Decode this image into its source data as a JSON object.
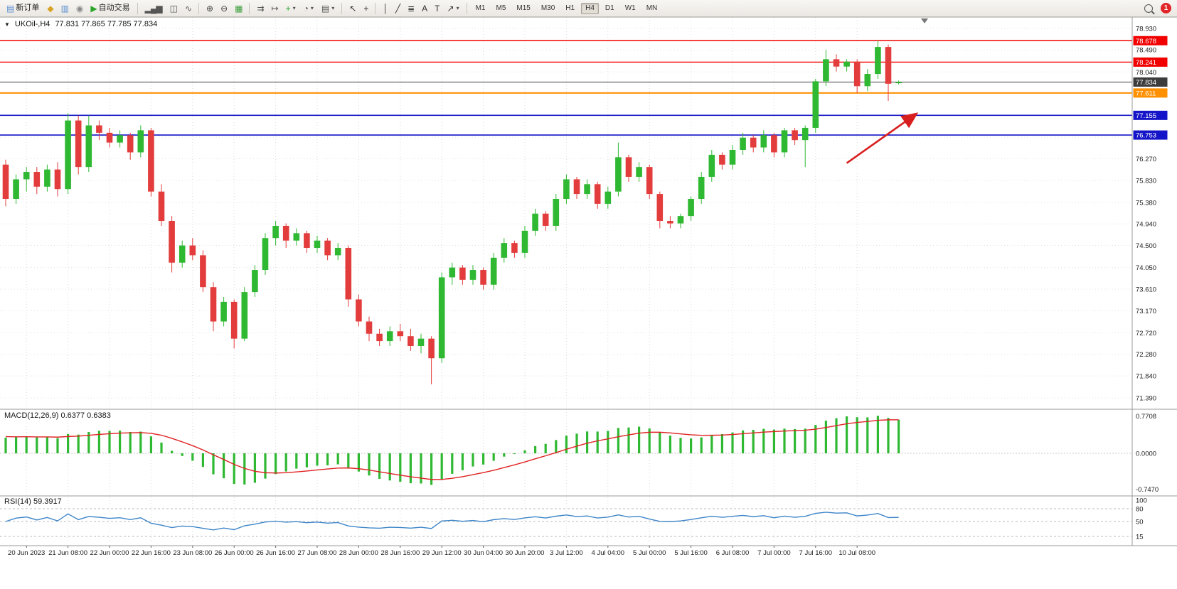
{
  "toolbar": {
    "file_group": [
      {
        "name": "new-order-button",
        "icon": "new-order-icon",
        "glyph": "▤",
        "glyph_color": "#5a8fd0",
        "label": "新订单"
      },
      {
        "name": "market-watch-button",
        "icon": "market-watch-icon",
        "glyph": "◆",
        "glyph_color": "#d8a327"
      },
      {
        "name": "data-window-button",
        "icon": "data-window-icon",
        "glyph": "▥",
        "glyph_color": "#5a8fd0"
      },
      {
        "name": "navigator-button",
        "icon": "navigator-icon",
        "glyph": "◉",
        "glyph_color": "#8a8a8a"
      },
      {
        "name": "autotrade-button",
        "icon": "autotrade-icon",
        "glyph": "▶",
        "glyph_color": "#2aa52a",
        "label": "自动交易"
      }
    ],
    "chart_type_group": [
      {
        "name": "bar-chart-button",
        "icon": "bar-chart-icon",
        "glyph": "▂▄▆",
        "glyph_color": "#555555"
      },
      {
        "name": "candlestick-chart-button",
        "icon": "candlestick-chart-icon",
        "glyph": "◫",
        "glyph_color": "#555555"
      },
      {
        "name": "line-chart-button",
        "icon": "line-chart-icon",
        "glyph": "∿",
        "glyph_color": "#555555"
      }
    ],
    "zoom_group": [
      {
        "name": "zoom-in-button",
        "icon": "zoom-in-icon",
        "glyph": "⊕",
        "glyph_color": "#444444"
      },
      {
        "name": "zoom-out-button",
        "icon": "zoom-out-icon",
        "glyph": "⊖",
        "glyph_color": "#444444"
      },
      {
        "name": "tile-windows-button",
        "icon": "tile-windows-icon",
        "glyph": "▦",
        "glyph_color": "#3c9e3c"
      }
    ],
    "scroll_group": [
      {
        "name": "auto-scroll-button",
        "icon": "auto-scroll-icon",
        "glyph": "⇉",
        "glyph_color": "#555555"
      },
      {
        "name": "chart-shift-button",
        "icon": "chart-shift-icon",
        "glyph": "↦",
        "glyph_color": "#555555"
      },
      {
        "name": "indicators-button",
        "icon": "indicators-icon",
        "glyph": "+",
        "glyph_color": "#2aa52a",
        "caret": "▾"
      },
      {
        "name": "periods-button",
        "icon": "periods-icon",
        "glyph": "◔",
        "glyph_color": "#555555",
        "caret": "▾"
      },
      {
        "name": "templates-button",
        "icon": "templates-icon",
        "glyph": "▤",
        "glyph_color": "#555555",
        "caret": "▾"
      }
    ],
    "pointer_group": [
      {
        "name": "cursor-button",
        "icon": "cursor-icon",
        "glyph": "↖",
        "glyph_color": "#333333"
      },
      {
        "name": "crosshair-button",
        "icon": "crosshair-icon",
        "glyph": "+",
        "glyph_color": "#333333"
      }
    ],
    "draw_group": [
      {
        "name": "vertical-line-button",
        "icon": "vertical-line-icon",
        "glyph": "│",
        "glyph_color": "#333333"
      },
      {
        "name": "trendline-button",
        "icon": "trendline-icon",
        "glyph": "╱",
        "glyph_color": "#333333"
      },
      {
        "name": "fibonacci-button",
        "icon": "fibonacci-icon",
        "glyph": "≣",
        "glyph_color": "#333333"
      },
      {
        "name": "text-button",
        "icon": "text-icon",
        "glyph": "A",
        "glyph_color": "#333333"
      },
      {
        "name": "text-label-button",
        "icon": "text-label-icon",
        "glyph": "T",
        "glyph_color": "#333333"
      },
      {
        "name": "arrows-button",
        "icon": "arrows-icon",
        "glyph": "↗",
        "glyph_color": "#333333",
        "caret": "▾"
      }
    ],
    "timeframes": [
      {
        "name": "timeframe-m1",
        "label": "M1"
      },
      {
        "name": "timeframe-m5",
        "label": "M5"
      },
      {
        "name": "timeframe-m15",
        "label": "M15"
      },
      {
        "name": "timeframe-m30",
        "label": "M30"
      },
      {
        "name": "timeframe-h1",
        "label": "H1"
      },
      {
        "name": "timeframe-h4",
        "label": "H4",
        "active": true
      },
      {
        "name": "timeframe-d1",
        "label": "D1"
      },
      {
        "name": "timeframe-w1",
        "label": "W1"
      },
      {
        "name": "timeframe-mn",
        "label": "MN"
      }
    ],
    "notification_count": "1"
  },
  "header": {
    "collapse_glyph": "▼",
    "symbol_period": "UKOil-,H4",
    "ohlc": "77.831 77.865 77.785 77.834"
  },
  "chart_data": {
    "type": "candlestick",
    "symbol": "UKOil",
    "period": "H4",
    "last_ohlc": {
      "open": "77.831",
      "high": "77.865",
      "low": "77.785",
      "close": "77.834"
    },
    "ylim": [
      71.16,
      79.16
    ],
    "y_ticks": [
      "78.930",
      "78.490",
      "78.040",
      "77.600",
      "77.160",
      "76.710",
      "76.270",
      "75.830",
      "75.380",
      "74.940",
      "74.500",
      "74.050",
      "73.610",
      "73.170",
      "72.720",
      "72.280",
      "71.840",
      "71.390"
    ],
    "x_labels": [
      "20 Jun 2023",
      "21 Jun 08:00",
      "22 Jun 00:00",
      "22 Jun 16:00",
      "23 Jun 08:00",
      "26 Jun 00:00",
      "26 Jun 16:00",
      "27 Jun 08:00",
      "28 Jun 00:00",
      "28 Jun 16:00",
      "29 Jun 12:00",
      "30 Jun 04:00",
      "30 Jun 20:00",
      "3 Jul 12:00",
      "4 Jul 04:00",
      "5 Jul 00:00",
      "5 Jul 16:00",
      "6 Jul 08:00",
      "7 Jul 00:00",
      "7 Jul 16:00",
      "10 Jul 08:00"
    ],
    "x_label_first_index": 2,
    "x_label_step": 4,
    "colors": {
      "up": "#2fb832",
      "down": "#e33c3c"
    },
    "levels": [
      {
        "name": "resistance-line-1",
        "price": 78.678,
        "color": "#f20000",
        "width": 1.4,
        "badge": "78.678"
      },
      {
        "name": "resistance-line-2",
        "price": 78.241,
        "color": "#f20000",
        "width": 1.4,
        "badge": "78.241"
      },
      {
        "name": "current-price-line",
        "price": 77.834,
        "color": "#3c3c3c",
        "width": 1,
        "badge": "77.834"
      },
      {
        "name": "support-line-orange",
        "price": 77.611,
        "color": "#ff9000",
        "width": 2,
        "badge": "77.611"
      },
      {
        "name": "support-line-blue-1",
        "price": 77.155,
        "color": "#1414c8",
        "width": 1.6,
        "badge": "77.155"
      },
      {
        "name": "support-line-blue-2",
        "price": 76.753,
        "color": "#1414c8",
        "width": 1.6,
        "badge": "76.753"
      }
    ],
    "annotations": {
      "trend_arrow": {
        "from_index": 81,
        "from_price": 76.18,
        "to_index": 87.6,
        "to_price": 77.17,
        "color": "#d81f1f"
      }
    },
    "candles": [
      [
        76.15,
        76.25,
        75.3,
        75.45
      ],
      [
        75.45,
        75.95,
        75.35,
        75.85
      ],
      [
        75.85,
        76.1,
        75.6,
        76.0
      ],
      [
        76.0,
        76.1,
        75.55,
        75.7
      ],
      [
        75.7,
        76.15,
        75.6,
        76.05
      ],
      [
        76.05,
        76.2,
        75.5,
        75.65
      ],
      [
        75.65,
        77.2,
        75.55,
        77.05
      ],
      [
        77.05,
        77.15,
        75.95,
        76.1
      ],
      [
        76.1,
        77.15,
        76.0,
        76.95
      ],
      [
        76.95,
        77.05,
        76.65,
        76.8
      ],
      [
        76.8,
        76.9,
        76.5,
        76.6
      ],
      [
        76.6,
        76.85,
        76.5,
        76.75
      ],
      [
        76.75,
        76.8,
        76.25,
        76.4
      ],
      [
        76.4,
        76.95,
        76.3,
        76.85
      ],
      [
        76.85,
        76.9,
        75.5,
        75.6
      ],
      [
        75.6,
        75.75,
        74.9,
        75.0
      ],
      [
        75.0,
        75.1,
        73.95,
        74.15
      ],
      [
        74.15,
        74.6,
        74.05,
        74.5
      ],
      [
        74.5,
        74.65,
        74.2,
        74.3
      ],
      [
        74.3,
        74.4,
        73.55,
        73.65
      ],
      [
        73.65,
        73.75,
        72.75,
        72.95
      ],
      [
        72.95,
        73.45,
        72.85,
        73.35
      ],
      [
        73.35,
        73.4,
        72.4,
        72.6
      ],
      [
        72.6,
        73.65,
        72.55,
        73.55
      ],
      [
        73.55,
        74.1,
        73.45,
        74.0
      ],
      [
        74.0,
        74.75,
        73.9,
        74.65
      ],
      [
        74.65,
        75.0,
        74.5,
        74.9
      ],
      [
        74.9,
        74.95,
        74.45,
        74.6
      ],
      [
        74.6,
        74.85,
        74.5,
        74.75
      ],
      [
        74.75,
        74.8,
        74.35,
        74.45
      ],
      [
        74.45,
        74.7,
        74.35,
        74.6
      ],
      [
        74.6,
        74.65,
        74.2,
        74.3
      ],
      [
        74.3,
        74.55,
        74.2,
        74.45
      ],
      [
        74.45,
        74.5,
        73.25,
        73.4
      ],
      [
        73.4,
        73.5,
        72.85,
        72.95
      ],
      [
        72.95,
        73.05,
        72.55,
        72.7
      ],
      [
        72.7,
        72.8,
        72.45,
        72.55
      ],
      [
        72.55,
        72.85,
        72.45,
        72.75
      ],
      [
        72.75,
        72.9,
        72.55,
        72.65
      ],
      [
        72.65,
        72.8,
        72.35,
        72.45
      ],
      [
        72.45,
        72.7,
        72.3,
        72.6
      ],
      [
        72.6,
        72.65,
        71.67,
        72.2
      ],
      [
        72.2,
        73.95,
        72.1,
        73.85
      ],
      [
        73.85,
        74.15,
        73.7,
        74.05
      ],
      [
        74.05,
        74.1,
        73.7,
        73.8
      ],
      [
        73.8,
        74.1,
        73.7,
        74.0
      ],
      [
        74.0,
        74.05,
        73.6,
        73.7
      ],
      [
        73.7,
        74.35,
        73.6,
        74.25
      ],
      [
        74.25,
        74.65,
        74.15,
        74.55
      ],
      [
        74.55,
        74.6,
        74.25,
        74.35
      ],
      [
        74.35,
        74.9,
        74.25,
        74.8
      ],
      [
        74.8,
        75.25,
        74.7,
        75.15
      ],
      [
        75.15,
        75.2,
        74.8,
        74.9
      ],
      [
        74.9,
        75.55,
        74.8,
        75.45
      ],
      [
        75.45,
        75.95,
        75.35,
        75.85
      ],
      [
        75.85,
        75.9,
        75.45,
        75.55
      ],
      [
        75.55,
        75.85,
        75.45,
        75.75
      ],
      [
        75.75,
        75.8,
        75.25,
        75.35
      ],
      [
        75.35,
        75.7,
        75.25,
        75.6
      ],
      [
        75.6,
        76.6,
        75.5,
        76.3
      ],
      [
        76.3,
        76.35,
        75.8,
        75.9
      ],
      [
        75.9,
        76.2,
        75.8,
        76.1
      ],
      [
        76.1,
        76.15,
        75.45,
        75.55
      ],
      [
        75.55,
        75.6,
        74.85,
        75.0
      ],
      [
        75.0,
        75.1,
        74.85,
        74.95
      ],
      [
        74.95,
        75.15,
        74.85,
        75.1
      ],
      [
        75.1,
        75.5,
        75.0,
        75.45
      ],
      [
        75.45,
        76.0,
        75.35,
        75.9
      ],
      [
        75.9,
        76.45,
        75.8,
        76.35
      ],
      [
        76.35,
        76.4,
        76.05,
        76.15
      ],
      [
        76.15,
        76.55,
        76.05,
        76.45
      ],
      [
        76.45,
        76.8,
        76.35,
        76.7
      ],
      [
        76.7,
        76.75,
        76.4,
        76.5
      ],
      [
        76.5,
        76.85,
        76.4,
        76.75
      ],
      [
        76.75,
        76.8,
        76.3,
        76.4
      ],
      [
        76.4,
        76.9,
        76.3,
        76.85
      ],
      [
        76.85,
        76.9,
        76.55,
        76.65
      ],
      [
        76.65,
        76.95,
        76.1,
        76.9
      ],
      [
        76.9,
        77.9,
        76.8,
        77.85
      ],
      [
        77.85,
        78.49,
        77.75,
        78.3
      ],
      [
        78.3,
        78.4,
        78.05,
        78.15
      ],
      [
        78.15,
        78.3,
        78.05,
        78.25
      ],
      [
        78.25,
        78.3,
        77.61,
        77.75
      ],
      [
        77.75,
        78.1,
        77.65,
        78.0
      ],
      [
        78.0,
        78.678,
        77.9,
        78.55
      ],
      [
        78.55,
        78.6,
        77.45,
        77.8
      ],
      [
        77.831,
        77.865,
        77.785,
        77.834
      ]
    ],
    "indicators": [
      {
        "type": "macd",
        "label": "MACD(12,26,9) 0.6377 0.6383",
        "params": [
          12,
          26,
          9
        ],
        "current": [
          0.6377,
          0.6383
        ],
        "y_ticks": [
          "0.7708",
          "0.0000",
          "-0.7470"
        ],
        "histogram_color": "#2fb832",
        "signal_color": "#e02222"
      },
      {
        "type": "rsi",
        "label": "RSI(14) 59.3917",
        "params": [
          14
        ],
        "current": 59.3917,
        "levels": [
          80,
          50,
          15
        ],
        "y_ticks": [
          "100",
          "80",
          "50",
          "15"
        ],
        "line_color": "#3d85c8"
      }
    ]
  }
}
